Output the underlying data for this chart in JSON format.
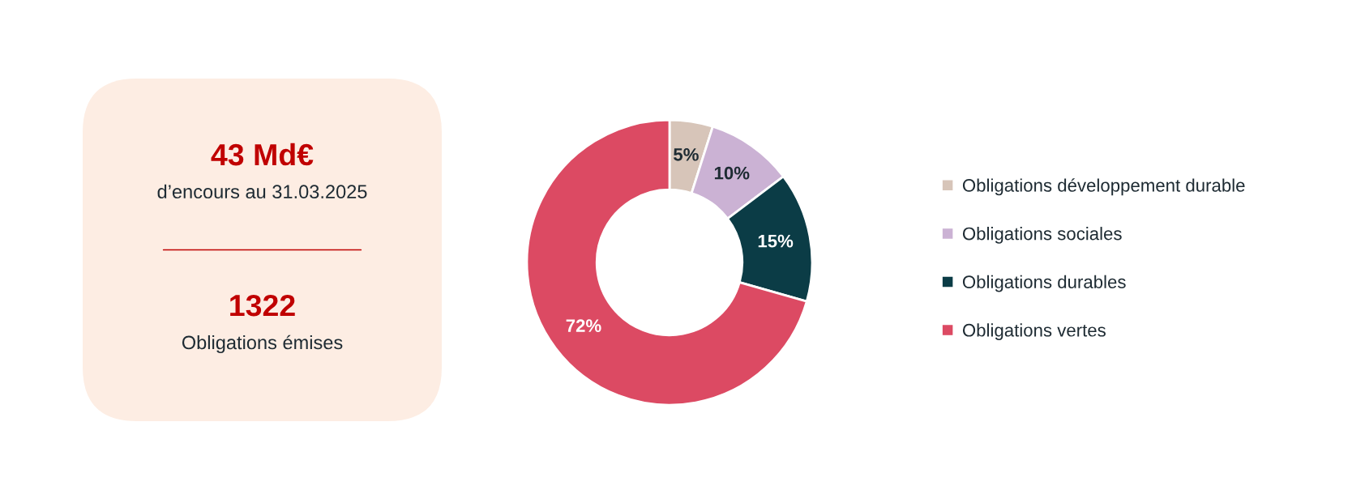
{
  "chart_data": [
    {
      "type": "other",
      "annotations": [
        "43 Md€",
        "d’encours au 31.03.2025",
        "1322",
        "Obligations émises"
      ]
    },
    {
      "type": "donut",
      "categories": [
        "Obligations développement durable",
        "Obligations sociales",
        "Obligations durables",
        "Obligations vertes"
      ],
      "values": [
        5,
        10,
        15,
        72
      ],
      "value_labels": [
        "5%",
        "10%",
        "15%",
        "72%"
      ],
      "colors": [
        "#d7c5b9",
        "#cbb2d4",
        "#0b3c46",
        "#dc4a63"
      ],
      "legend": "right"
    }
  ]
}
